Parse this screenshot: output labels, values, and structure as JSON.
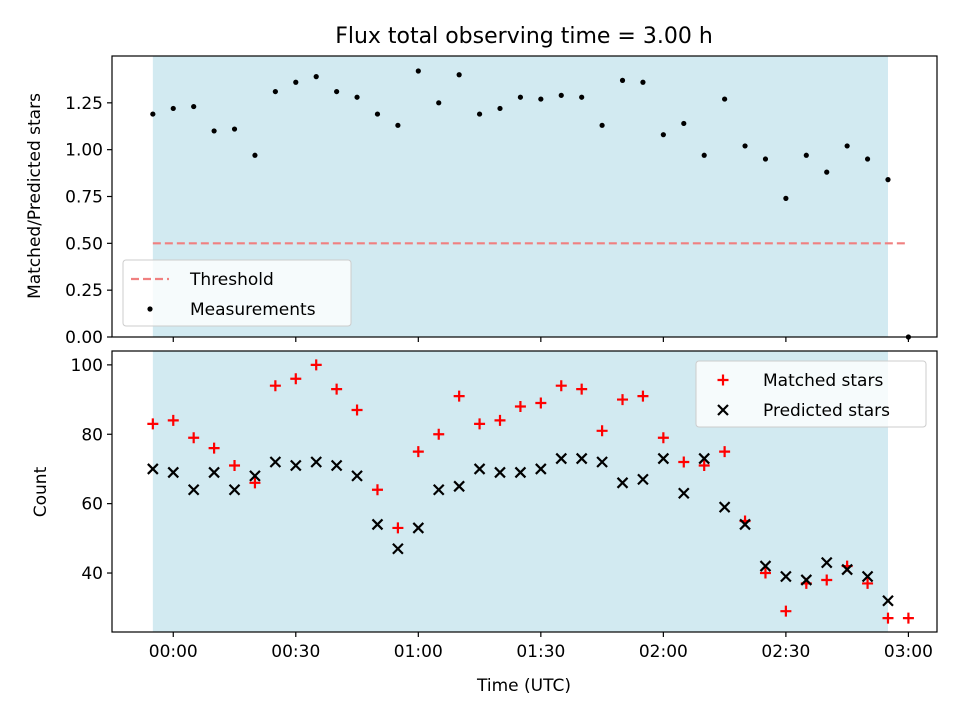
{
  "chart_data": [
    {
      "type": "scatter",
      "title": "Flux total observing time = 3.00 h",
      "xlabel": "",
      "ylabel": "Matched/Predicted stars",
      "ylim": [
        0,
        1.5
      ],
      "yticks": [
        "0.00",
        "0.25",
        "0.50",
        "0.75",
        "1.00",
        "1.25"
      ],
      "xticks": [
        "00:00",
        "00:30",
        "01:00",
        "01:30",
        "02:00",
        "02:30",
        "03:00"
      ],
      "xlim": [
        "23:45",
        "03:07"
      ],
      "observing_window": [
        "23:55",
        "02:55"
      ],
      "window_color": "#add8e6",
      "threshold": {
        "name": "Threshold",
        "value": 0.5,
        "x_range": [
          "23:55",
          "03:00"
        ],
        "color": "#f08080",
        "style": "dashed"
      },
      "series": [
        {
          "name": "Measurements",
          "color": "#000000",
          "marker": "dot",
          "x": [
            "23:55",
            "00:00",
            "00:05",
            "00:10",
            "00:15",
            "00:20",
            "00:25",
            "00:30",
            "00:35",
            "00:40",
            "00:45",
            "00:50",
            "00:55",
            "01:00",
            "01:05",
            "01:10",
            "01:15",
            "01:20",
            "01:25",
            "01:30",
            "01:35",
            "01:40",
            "01:45",
            "01:50",
            "01:55",
            "02:00",
            "02:05",
            "02:10",
            "02:15",
            "02:20",
            "02:25",
            "02:30",
            "02:35",
            "02:40",
            "02:45",
            "02:50",
            "02:55",
            "03:00"
          ],
          "values": [
            1.19,
            1.22,
            1.23,
            1.1,
            1.11,
            0.97,
            1.31,
            1.36,
            1.39,
            1.31,
            1.28,
            1.19,
            1.13,
            1.42,
            1.25,
            1.4,
            1.19,
            1.22,
            1.28,
            1.27,
            1.29,
            1.28,
            1.13,
            1.37,
            1.36,
            1.08,
            1.14,
            0.97,
            1.27,
            1.02,
            0.95,
            0.74,
            0.97,
            0.88,
            1.02,
            0.95,
            0.84,
            0.0
          ]
        }
      ],
      "legend": {
        "placement": "lower-left",
        "entries": [
          "Threshold",
          "Measurements"
        ]
      }
    },
    {
      "type": "scatter",
      "title": "",
      "xlabel": "Time (UTC)",
      "ylabel": "Count",
      "ylim": [
        23,
        104
      ],
      "yticks": [
        "40",
        "60",
        "80",
        "100"
      ],
      "xticks": [
        "00:00",
        "00:30",
        "01:00",
        "01:30",
        "02:00",
        "02:30",
        "03:00"
      ],
      "xlim": [
        "23:45",
        "03:07"
      ],
      "observing_window": [
        "23:55",
        "02:55"
      ],
      "window_color": "#add8e6",
      "x": [
        "23:55",
        "00:00",
        "00:05",
        "00:10",
        "00:15",
        "00:20",
        "00:25",
        "00:30",
        "00:35",
        "00:40",
        "00:45",
        "00:50",
        "00:55",
        "01:00",
        "01:05",
        "01:10",
        "01:15",
        "01:20",
        "01:25",
        "01:30",
        "01:35",
        "01:40",
        "01:45",
        "01:50",
        "01:55",
        "02:00",
        "02:05",
        "02:10",
        "02:15",
        "02:20",
        "02:25",
        "02:30",
        "02:35",
        "02:40",
        "02:45",
        "02:50",
        "02:55",
        "03:00"
      ],
      "series": [
        {
          "name": "Matched stars",
          "color": "#ff0000",
          "marker": "plus",
          "values": [
            83,
            84,
            79,
            76,
            71,
            66,
            94,
            96,
            100,
            93,
            87,
            64,
            53,
            75,
            80,
            91,
            83,
            84,
            88,
            89,
            94,
            93,
            81,
            90,
            91,
            79,
            72,
            71,
            75,
            55,
            40,
            29,
            37,
            38,
            42,
            37,
            27,
            27
          ]
        },
        {
          "name": "Predicted stars",
          "color": "#000000",
          "marker": "x",
          "values": [
            70,
            69,
            64,
            69,
            64,
            68,
            72,
            71,
            72,
            71,
            68,
            54,
            47,
            53,
            64,
            65,
            70,
            69,
            69,
            70,
            73,
            73,
            72,
            66,
            67,
            73,
            63,
            73,
            59,
            54,
            42,
            39,
            38,
            43,
            41,
            39,
            32,
            null
          ]
        }
      ],
      "legend": {
        "placement": "upper-right",
        "entries": [
          "Matched stars",
          "Predicted stars"
        ]
      }
    }
  ]
}
